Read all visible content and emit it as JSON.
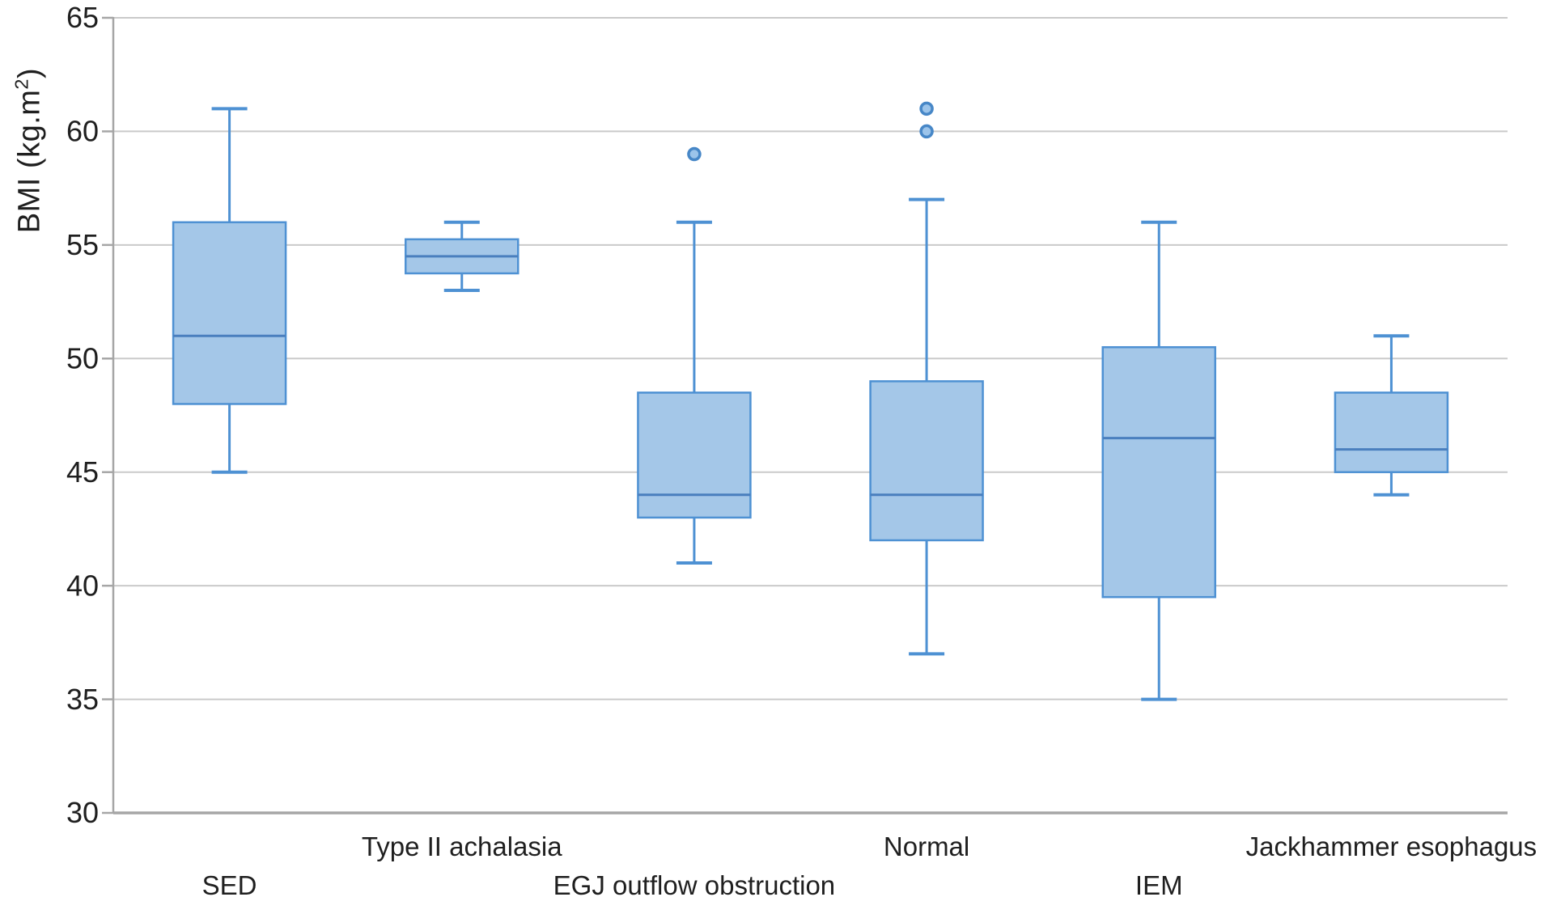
{
  "figure": {
    "background": "#ffffff"
  },
  "y_axis": {
    "label_prefix": "BMI (kg.m",
    "label_sup": "2",
    "label_suffix": ")"
  },
  "colors": {
    "box_fill": "#a4c7e8",
    "box_border": "#4e91d3",
    "median": "#4a7fbe",
    "whisker": "#4e91d3",
    "outlier_fill": "#9cc4ea",
    "outlier_border": "#4787c7",
    "gridline": "#cacaca",
    "axis": "#a6a6a6",
    "text": "#1f1f1f"
  },
  "chart_data": {
    "type": "boxplot",
    "title": "",
    "xlabel": "",
    "ylabel": "BMI (kg.m²)",
    "ylim": [
      30,
      65
    ],
    "yticks": [
      30,
      35,
      40,
      45,
      50,
      55,
      60,
      65
    ],
    "grid": true,
    "legend": false,
    "categories": [
      "SED",
      "Type II achalasia",
      "EGJ outflow obstruction",
      "Normal",
      "IEM",
      "Jackhammer esophagus"
    ],
    "boxes": [
      {
        "category": "SED",
        "min": 45,
        "q1": 48,
        "median": 51,
        "q3": 56,
        "max": 61,
        "outliers": [],
        "label_row": "lower"
      },
      {
        "category": "Type II achalasia",
        "min": 53,
        "q1": 53.75,
        "median": 54.5,
        "q3": 55.25,
        "max": 56,
        "outliers": [],
        "label_row": "upper"
      },
      {
        "category": "EGJ outflow obstruction",
        "min": 41,
        "q1": 43,
        "median": 44,
        "q3": 48.5,
        "max": 56,
        "outliers": [
          59
        ],
        "label_row": "lower"
      },
      {
        "category": "Normal",
        "min": 37,
        "q1": 42,
        "median": 44,
        "q3": 49,
        "max": 57,
        "outliers": [
          60,
          61
        ],
        "label_row": "upper"
      },
      {
        "category": "IEM",
        "min": 35,
        "q1": 39.5,
        "median": 46.5,
        "q3": 50.5,
        "max": 56,
        "outliers": [],
        "label_row": "lower"
      },
      {
        "category": "Jackhammer esophagus",
        "min": 44,
        "q1": 45,
        "median": 46,
        "q3": 48.5,
        "max": 51,
        "outliers": [],
        "label_row": "upper"
      }
    ]
  }
}
